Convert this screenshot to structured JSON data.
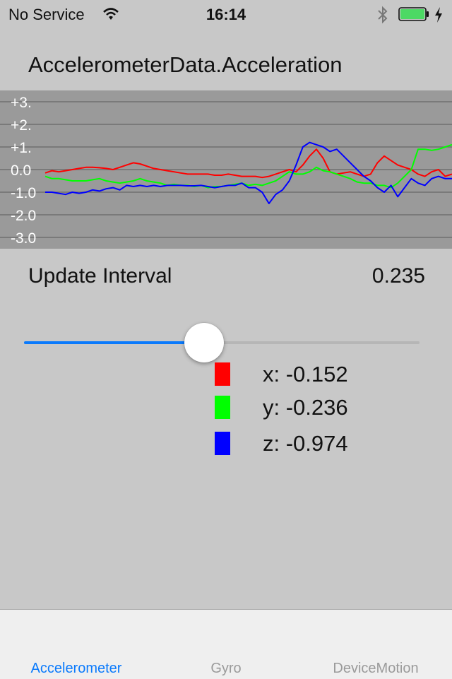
{
  "status_bar": {
    "carrier": "No Service",
    "time": "16:14",
    "icons": [
      "wifi-icon",
      "bluetooth-icon",
      "battery-icon",
      "charging-bolt-icon"
    ],
    "battery_color": "#4cd964"
  },
  "title": "AccelerometerData.Acceleration",
  "graph": {
    "background": "#9a9a9a",
    "gridline_color": "#6f6f6f",
    "tick_labels": [
      "+3.",
      "+2.",
      "+1.",
      "0.0",
      "-1.0",
      "-2.0",
      "-3.0"
    ],
    "series_colors": {
      "x": "#ff0000",
      "y": "#00ff00",
      "z": "#0000ff"
    }
  },
  "chart_data": {
    "type": "line",
    "ylim": [
      -3,
      3
    ],
    "series": [
      {
        "color": "#ff0000",
        "values": [
          -0.15,
          -0.05,
          -0.1,
          -0.05,
          0.0,
          0.05,
          0.1,
          0.1,
          0.08,
          0.05,
          0.0,
          0.1,
          0.2,
          0.3,
          0.25,
          0.15,
          0.05,
          0.0,
          -0.05,
          -0.1,
          -0.15,
          -0.2,
          -0.2,
          -0.2,
          -0.2,
          -0.25,
          -0.25,
          -0.2,
          -0.25,
          -0.3,
          -0.3,
          -0.3,
          -0.35,
          -0.3,
          -0.2,
          -0.1,
          0.0,
          -0.1,
          0.2,
          0.6,
          0.9,
          0.5,
          -0.1,
          -0.2,
          -0.15,
          -0.1,
          -0.2,
          -0.3,
          -0.2,
          0.3,
          0.6,
          0.4,
          0.2,
          0.1,
          0.0,
          -0.2,
          -0.3,
          -0.1,
          0.0,
          -0.3,
          -0.2
        ]
      },
      {
        "color": "#00ff00",
        "values": [
          -0.3,
          -0.4,
          -0.4,
          -0.45,
          -0.5,
          -0.5,
          -0.5,
          -0.45,
          -0.4,
          -0.5,
          -0.55,
          -0.6,
          -0.55,
          -0.5,
          -0.4,
          -0.5,
          -0.55,
          -0.6,
          -0.7,
          -0.65,
          -0.7,
          -0.7,
          -0.75,
          -0.7,
          -0.8,
          -0.75,
          -0.75,
          -0.7,
          -0.65,
          -0.6,
          -0.7,
          -0.65,
          -0.7,
          -0.6,
          -0.5,
          -0.3,
          -0.1,
          -0.2,
          -0.2,
          -0.1,
          0.1,
          -0.05,
          -0.1,
          -0.2,
          -0.3,
          -0.4,
          -0.55,
          -0.6,
          -0.6,
          -0.7,
          -0.7,
          -0.8,
          -0.6,
          -0.3,
          0.0,
          0.9,
          0.9,
          0.85,
          0.9,
          1.0,
          1.1
        ]
      },
      {
        "color": "#0000ff",
        "values": [
          -1.0,
          -1.0,
          -1.05,
          -1.1,
          -1.0,
          -1.05,
          -1.0,
          -0.9,
          -0.95,
          -0.85,
          -0.8,
          -0.9,
          -0.7,
          -0.75,
          -0.7,
          -0.75,
          -0.7,
          -0.75,
          -0.7,
          -0.7,
          -0.7,
          -0.72,
          -0.72,
          -0.7,
          -0.75,
          -0.8,
          -0.75,
          -0.7,
          -0.7,
          -0.6,
          -0.8,
          -0.8,
          -1.0,
          -1.5,
          -1.1,
          -0.9,
          -0.5,
          0.2,
          1.0,
          1.2,
          1.1,
          1.0,
          0.8,
          0.9,
          0.6,
          0.3,
          0.0,
          -0.3,
          -0.5,
          -0.8,
          -1.0,
          -0.7,
          -1.2,
          -0.8,
          -0.4,
          -0.6,
          -0.7,
          -0.4,
          -0.3,
          -0.4,
          -0.4
        ]
      }
    ]
  },
  "controls": {
    "interval_label": "Update Interval",
    "interval_value": "0.235",
    "slider_fraction": 0.45,
    "slider_fill_color": "#0a7afc"
  },
  "legend": [
    {
      "color": "#ff0000",
      "text": "x: -0.152"
    },
    {
      "color": "#00ff00",
      "text": "y: -0.236"
    },
    {
      "color": "#0000ff",
      "text": "z: -0.974"
    }
  ],
  "tabs": [
    {
      "label": "Accelerometer",
      "active": true
    },
    {
      "label": "Gyro",
      "active": false
    },
    {
      "label": "DeviceMotion",
      "active": false
    }
  ],
  "tab_colors": {
    "active": "#0a7afc",
    "inactive": "#9a9a9a"
  }
}
